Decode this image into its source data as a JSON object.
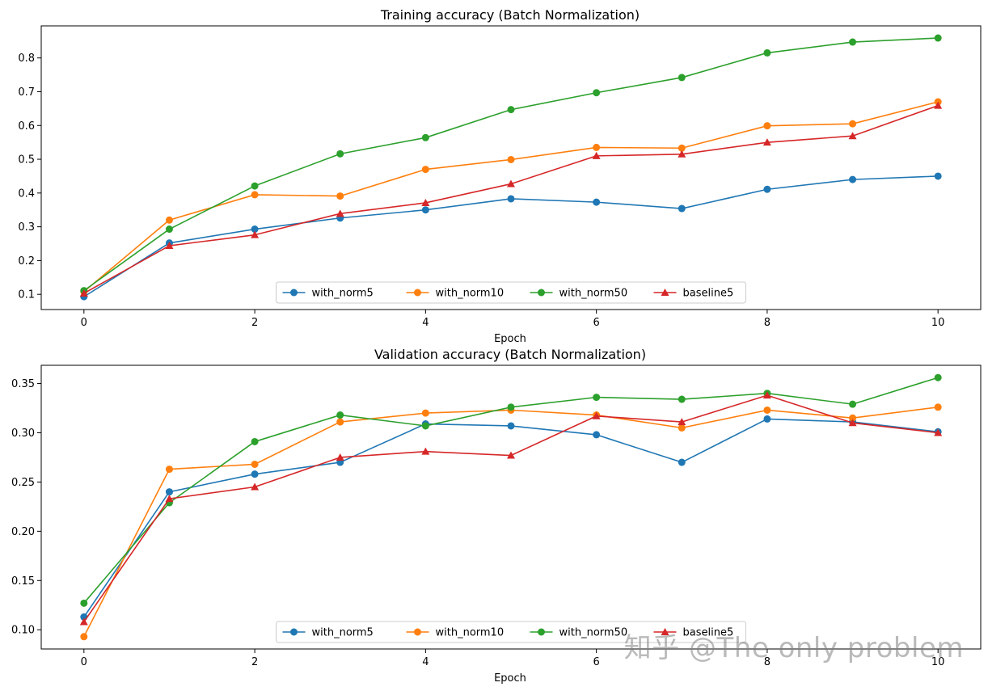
{
  "chart_data": [
    {
      "type": "line",
      "title": "Training accuracy (Batch Normalization)",
      "xlabel": "Epoch",
      "ylabel": "",
      "xlim": [
        -0.5,
        10.5
      ],
      "ylim": [
        0.055,
        0.895
      ],
      "xticks": [
        0,
        2,
        4,
        6,
        8,
        10
      ],
      "yticks": [
        0.1,
        0.2,
        0.3,
        0.4,
        0.5,
        0.6,
        0.7,
        0.8
      ],
      "legend_location": "bottom-center",
      "x": [
        0,
        1,
        2,
        3,
        4,
        5,
        6,
        7,
        8,
        9,
        10
      ],
      "series": [
        {
          "name": "with_norm5",
          "color": "#1f77b4",
          "marker": "circle",
          "values": [
            0.093,
            0.252,
            0.293,
            0.326,
            0.35,
            0.383,
            0.373,
            0.354,
            0.411,
            0.44,
            0.45
          ]
        },
        {
          "name": "with_norm10",
          "color": "#ff7f0e",
          "marker": "circle",
          "values": [
            0.108,
            0.32,
            0.395,
            0.391,
            0.47,
            0.499,
            0.535,
            0.533,
            0.599,
            0.605,
            0.67
          ]
        },
        {
          "name": "with_norm50",
          "color": "#2ca02c",
          "marker": "circle",
          "values": [
            0.111,
            0.293,
            0.421,
            0.516,
            0.564,
            0.647,
            0.697,
            0.742,
            0.815,
            0.847,
            0.859
          ]
        },
        {
          "name": "baseline5",
          "color": "#d62728",
          "marker": "triangle",
          "values": [
            0.103,
            0.244,
            0.276,
            0.339,
            0.371,
            0.427,
            0.51,
            0.515,
            0.55,
            0.569,
            0.659
          ]
        }
      ]
    },
    {
      "type": "line",
      "title": "Validation accuracy (Batch Normalization)",
      "xlabel": "Epoch",
      "ylabel": "",
      "xlim": [
        -0.5,
        10.5
      ],
      "ylim": [
        0.0805,
        0.3685
      ],
      "xticks": [
        0,
        2,
        4,
        6,
        8,
        10
      ],
      "yticks": [
        0.1,
        0.15,
        0.2,
        0.25,
        0.3,
        0.35
      ],
      "legend_location": "bottom-center",
      "x": [
        0,
        1,
        2,
        3,
        4,
        5,
        6,
        7,
        8,
        9,
        10
      ],
      "series": [
        {
          "name": "with_norm5",
          "color": "#1f77b4",
          "marker": "circle",
          "values": [
            0.113,
            0.24,
            0.258,
            0.27,
            0.309,
            0.307,
            0.298,
            0.27,
            0.314,
            0.311,
            0.301
          ]
        },
        {
          "name": "with_norm10",
          "color": "#ff7f0e",
          "marker": "circle",
          "values": [
            0.093,
            0.263,
            0.268,
            0.311,
            0.32,
            0.323,
            0.318,
            0.305,
            0.323,
            0.315,
            0.326
          ]
        },
        {
          "name": "with_norm50",
          "color": "#2ca02c",
          "marker": "circle",
          "values": [
            0.127,
            0.229,
            0.291,
            0.318,
            0.307,
            0.326,
            0.336,
            0.334,
            0.34,
            0.329,
            0.356
          ]
        },
        {
          "name": "baseline5",
          "color": "#d62728",
          "marker": "triangle",
          "values": [
            0.108,
            0.233,
            0.245,
            0.275,
            0.281,
            0.277,
            0.317,
            0.311,
            0.338,
            0.31,
            0.3
          ]
        }
      ]
    }
  ],
  "watermark": "知乎 @The only problem"
}
